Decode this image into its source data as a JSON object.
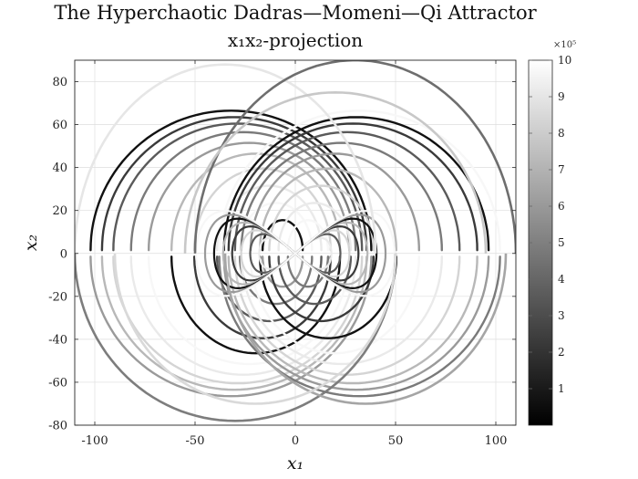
{
  "chart_data": {
    "type": "line",
    "title": "The Hyperchaotic Dadras—Momeni—Qi Attractor",
    "subtitle": "x₁x₂-projection",
    "xlabel": "x₁",
    "ylabel": "x₂",
    "xlim": [
      -110,
      110
    ],
    "ylim": [
      -80,
      90
    ],
    "xticks": [
      -100,
      -50,
      0,
      50,
      100
    ],
    "yticks": [
      -80,
      -60,
      -40,
      -20,
      0,
      20,
      40,
      60,
      80
    ],
    "grid": true,
    "colormap": "gray",
    "colorbar": {
      "range": [
        0,
        10
      ],
      "ticks": [
        1,
        2,
        3,
        4,
        5,
        6,
        7,
        8,
        9,
        10
      ],
      "exponent_label": "×10⁵"
    }
  }
}
